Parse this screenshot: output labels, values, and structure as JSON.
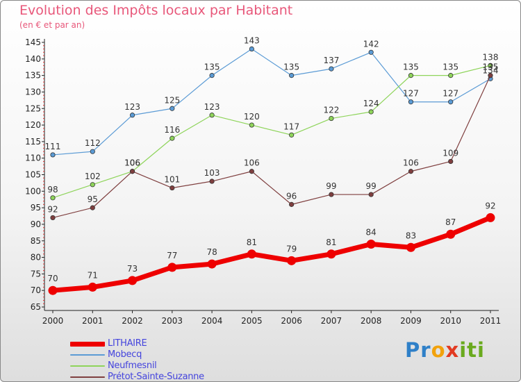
{
  "chart_data": {
    "type": "line",
    "title": "Evolution des Impôts locaux par Habitant",
    "subtitle": "(en € et par an)",
    "categories": [
      "2000",
      "2001",
      "2002",
      "2003",
      "2004",
      "2005",
      "2006",
      "2007",
      "2008",
      "2009",
      "2010",
      "2011"
    ],
    "ylim": [
      65,
      145
    ],
    "yticks": [
      65,
      70,
      75,
      80,
      85,
      90,
      95,
      100,
      105,
      110,
      115,
      120,
      125,
      130,
      135,
      140,
      145
    ],
    "grid": false,
    "legend_position": "bottom-left",
    "series": [
      {
        "name": "Mobecq",
        "color": "#5b9bd5",
        "values": [
          111,
          112,
          123,
          125,
          135,
          143,
          135,
          137,
          142,
          127,
          127,
          134
        ],
        "labels": [
          "111",
          "112",
          "123",
          "125",
          "135",
          "143",
          "135",
          "137",
          "142",
          "127",
          "127",
          "134"
        ]
      },
      {
        "name": "Neufmesnil",
        "color": "#8ed45a",
        "values": [
          98,
          102,
          106,
          116,
          123,
          120,
          117,
          122,
          124,
          135,
          135,
          138
        ],
        "labels": [
          "98",
          "102",
          "106",
          "116",
          "123",
          "120",
          "117",
          "122",
          "124",
          "135",
          "135",
          "138"
        ]
      },
      {
        "name": "Prétot-Sainte-Suzanne",
        "color": "#7f3f3f",
        "values": [
          92,
          95,
          106,
          101,
          103,
          106,
          96,
          99,
          99,
          106,
          109,
          135
        ],
        "labels": [
          "92",
          "95",
          "106",
          "101",
          "103",
          "106",
          "96",
          "99",
          "99",
          "106",
          "109",
          "135"
        ]
      },
      {
        "name": "LITHAIRE",
        "color": "#ee0000",
        "values": [
          70,
          71,
          73,
          77,
          78,
          81,
          79,
          81,
          84,
          83,
          87,
          92
        ],
        "labels": [
          "70",
          "71",
          "73",
          "77",
          "78",
          "81",
          "79",
          "81",
          "84",
          "83",
          "87",
          "92"
        ]
      }
    ]
  },
  "legend": {
    "items": [
      {
        "label": "LITHAIRE",
        "color": "#ee0000"
      },
      {
        "label": "Mobecq",
        "color": "#5b9bd5"
      },
      {
        "label": "Neufmesnil",
        "color": "#8ed45a"
      },
      {
        "label": "Prétot-Sainte-Suzanne",
        "color": "#7f3f3f"
      }
    ]
  },
  "brand": {
    "parts": [
      "Pr",
      "o",
      "x",
      "iti"
    ]
  }
}
